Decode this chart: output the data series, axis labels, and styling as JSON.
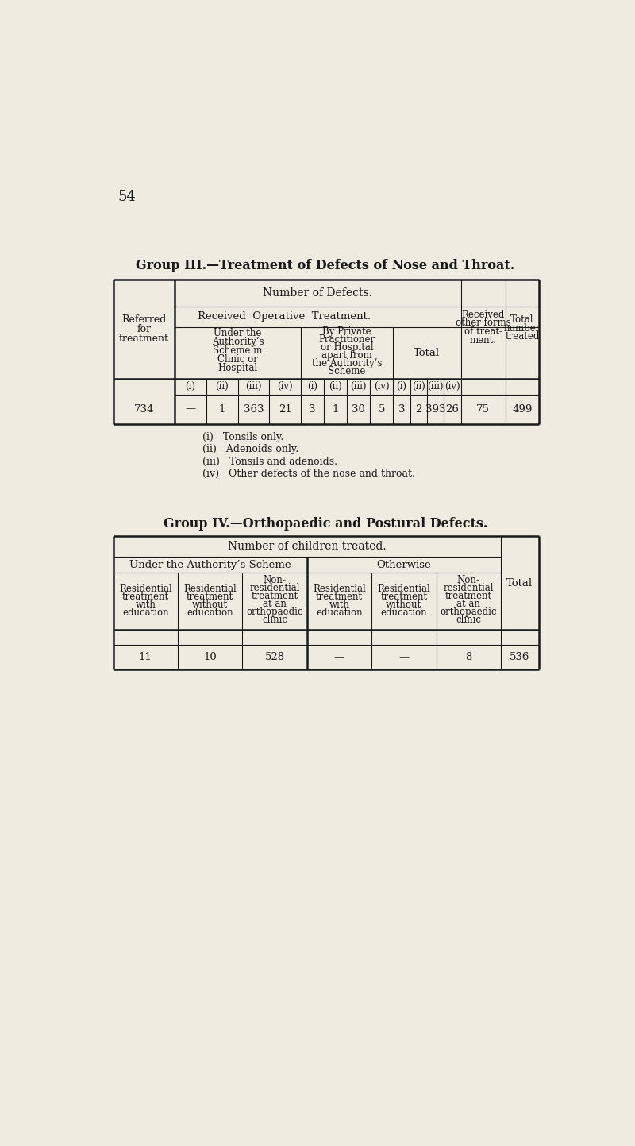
{
  "bg_color": "#f0ebe0",
  "page_number": "54",
  "group3_title": "Group III.—Treatment of Defects of Nose and Throat.",
  "group3_col1_header": [
    "Referred",
    "for",
    "treatment"
  ],
  "group3_top_header": "Number of Defects.",
  "group3_sub_header": "Received  Operative  Treatment.",
  "group3_under_authority_header": [
    "Under the",
    "Authority’s",
    "Scheme in",
    "Clinic or",
    "Hospital"
  ],
  "group3_by_private_header": [
    "By Private",
    "Practitioner",
    "or Hospital",
    "apart from",
    "the Authority’s",
    "Scheme"
  ],
  "group3_total_header": "Total",
  "group3_received_other_header": [
    "Received",
    "other forms",
    "of treat-",
    "ment."
  ],
  "group3_total_number_header": [
    "Total",
    "number",
    "treated"
  ],
  "group3_sub_cols": [
    "(i)",
    "(ii)",
    "(iii)",
    "(iv)"
  ],
  "group3_data_row": [
    "734",
    "—",
    "1",
    "363",
    "21",
    "3",
    "1",
    "30",
    "5",
    "3",
    "2",
    "393",
    "26",
    "75",
    "499"
  ],
  "group3_footnotes": [
    "(i)   Tonsils only.",
    "(ii)   Adenoids only.",
    "(iii)   Tonsils and adenoids.",
    "(iv)   Other defects of the nose and throat."
  ],
  "group4_title": "Group IV.—Orthopaedic and Postural Defects.",
  "group4_top_header": "Number of children treated.",
  "group4_authority_header": "Under the Authority’s Scheme",
  "group4_otherwise_header": "Otherwise",
  "group4_col_headers": [
    [
      "Residential",
      "treatment",
      "with",
      "education"
    ],
    [
      "Residential",
      "treatment",
      "without",
      "education"
    ],
    [
      "Non-",
      "residential",
      "treatment",
      "at an",
      "orthopaedic",
      "clinic"
    ],
    [
      "Residential",
      "treatment",
      "with",
      "education"
    ],
    [
      "Residential",
      "treatment",
      "without",
      "education"
    ],
    [
      "Non-",
      "residential",
      "treatment",
      "at an",
      "orthopaedic",
      "clinic"
    ],
    [
      "Total"
    ]
  ],
  "group4_data_row": [
    "11",
    "10",
    "528",
    "—",
    "—",
    "8",
    "536"
  ]
}
